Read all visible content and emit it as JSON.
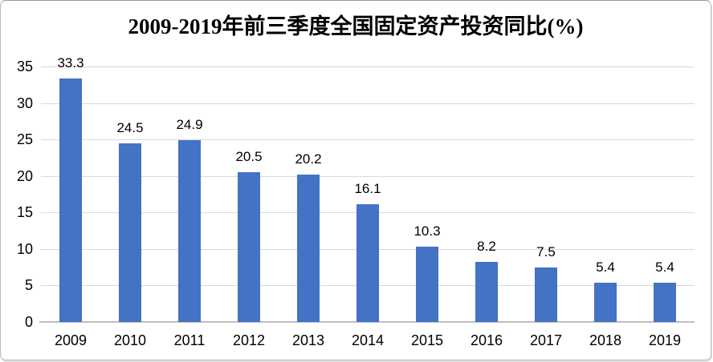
{
  "title": "2009-2019年前三季度全国固定资产投资同比(%)",
  "colors": {
    "bar": "#4472C4",
    "gridline": "#D9D9D9",
    "axis_line": "#BFBFBF",
    "text": "#000000",
    "frame_border": "#B9B9B9"
  },
  "chart_data": {
    "type": "bar",
    "title": "2009-2019年前三季度全国固定资产投资同比(%)",
    "categories": [
      "2009",
      "2010",
      "2011",
      "2012",
      "2013",
      "2014",
      "2015",
      "2016",
      "2017",
      "2018",
      "2019"
    ],
    "values": [
      33.3,
      24.5,
      24.9,
      20.5,
      20.2,
      16.1,
      10.3,
      8.2,
      7.5,
      5.4,
      5.4
    ],
    "value_labels": [
      "33.3",
      "24.5",
      "24.9",
      "20.5",
      "20.2",
      "16.1",
      "10.3",
      "8.2",
      "7.5",
      "5.4",
      "5.4"
    ],
    "xlabel": "",
    "ylabel": "",
    "ylim": [
      0,
      35
    ],
    "yticks": [
      0,
      5,
      10,
      15,
      20,
      25,
      30,
      35
    ],
    "grid": true,
    "legend_position": "none",
    "data_labels": true
  }
}
